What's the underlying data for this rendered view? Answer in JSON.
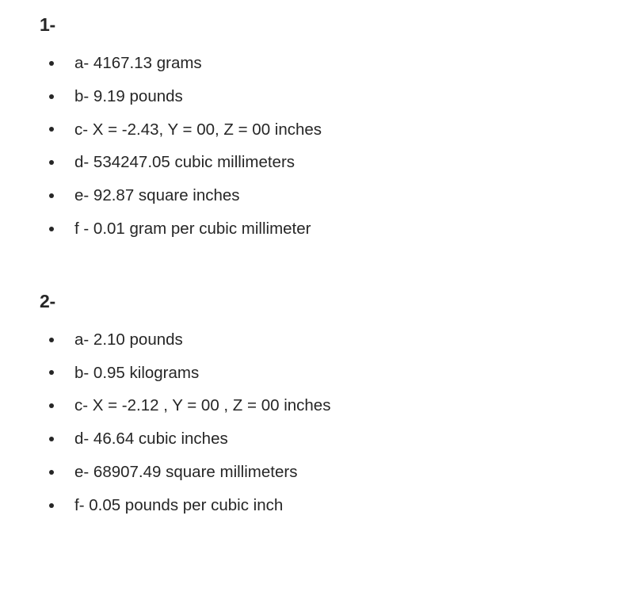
{
  "sections": [
    {
      "heading": "1-",
      "items": [
        "a- 4167.13 grams",
        "b- 9.19 pounds",
        "c- X = -2.43, Y = 00, Z = 00 inches",
        "d- 534247.05 cubic millimeters",
        "e- 92.87 square inches",
        "f - 0.01 gram per cubic millimeter"
      ]
    },
    {
      "heading": "2-",
      "items": [
        "a- 2.10 pounds",
        "b- 0.95 kilograms",
        "c- X = -2.12 , Y = 00 , Z = 00 inches",
        "d- 46.64 cubic inches",
        "e- 68907.49 square millimeters",
        "f- 0.05 pounds per cubic inch"
      ]
    }
  ]
}
